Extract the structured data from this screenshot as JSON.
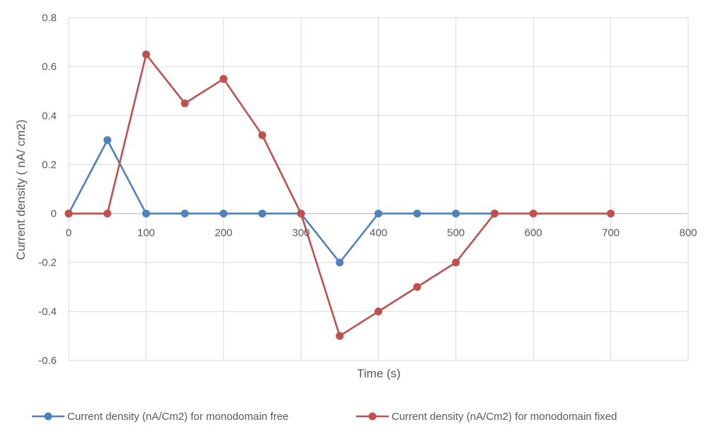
{
  "chart_data": {
    "type": "line",
    "xlabel": "Time (s)",
    "ylabel": "Current density ( nA/ cm2)",
    "xlim": [
      0,
      800
    ],
    "ylim": [
      -0.6,
      0.8
    ],
    "x_ticks": [
      0,
      100,
      200,
      300,
      400,
      500,
      600,
      700,
      800
    ],
    "y_ticks": [
      -0.6,
      -0.4,
      -0.2,
      0,
      0.2,
      0.4,
      0.6,
      0.8
    ],
    "x_tick_labels": [
      "0",
      "100",
      "200",
      "300",
      "400",
      "500",
      "600",
      "700",
      "800"
    ],
    "y_tick_labels": [
      "-0.6",
      "-0.4",
      "-0.2",
      "0",
      "0.2",
      "0.4",
      "0.6",
      "0.8"
    ],
    "grid": true,
    "legend_position": "bottom",
    "series": [
      {
        "name": "Current density (nA/Cm2) for monodomain free",
        "color": "#4f81bd",
        "x": [
          0,
          50,
          100,
          150,
          200,
          250,
          300,
          350,
          400,
          450,
          500,
          550
        ],
        "y": [
          0,
          0.3,
          0,
          0,
          0,
          0,
          0,
          -0.2,
          0,
          0,
          0,
          0
        ]
      },
      {
        "name": "Current density (nA/Cm2) for monodomain fixed",
        "color": "#c0504d",
        "x": [
          0,
          50,
          100,
          150,
          200,
          250,
          300,
          350,
          400,
          450,
          500,
          550,
          600,
          700
        ],
        "y": [
          0,
          0,
          0.65,
          0.45,
          0.55,
          0.32,
          0,
          -0.5,
          -0.4,
          -0.3,
          -0.2,
          0,
          0,
          0
        ]
      }
    ]
  }
}
